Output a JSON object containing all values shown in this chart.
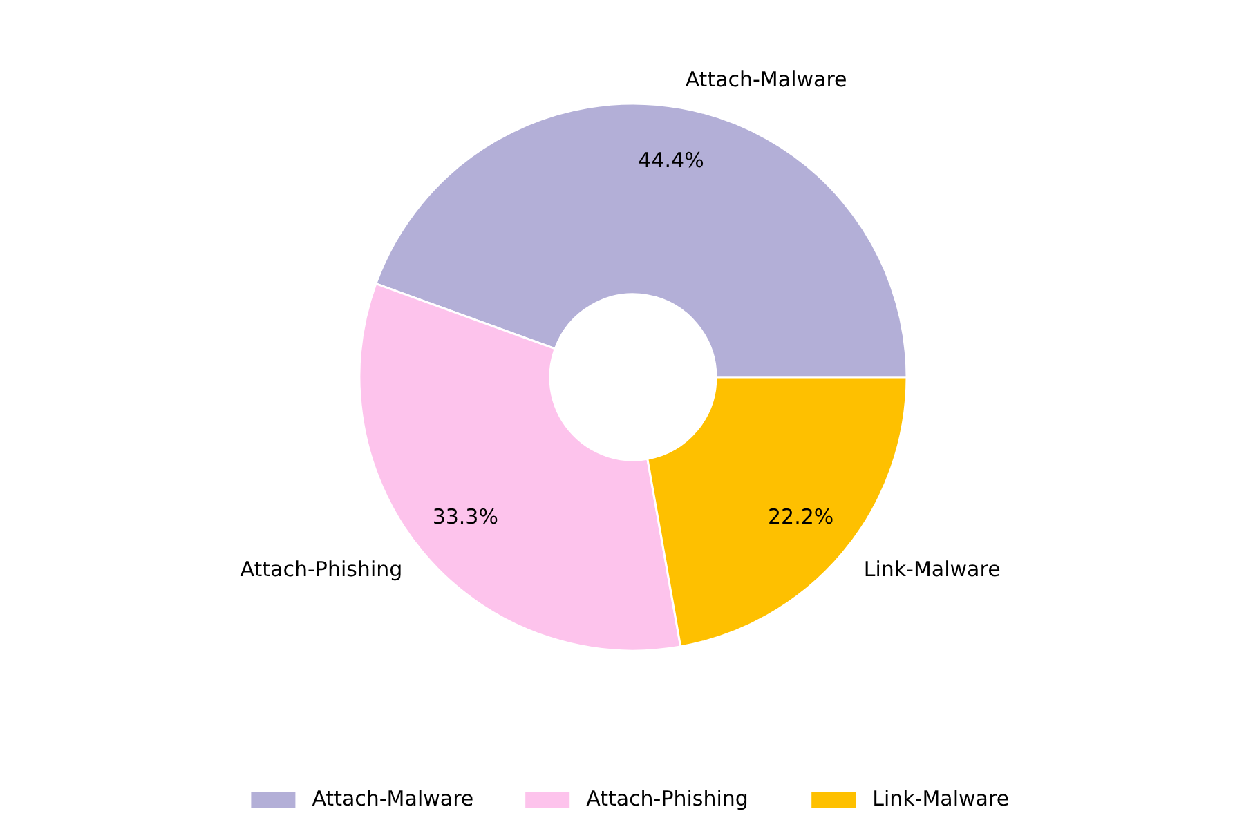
{
  "chart_data": {
    "type": "donut",
    "categories": [
      "Attach-Malware",
      "Attach-Phishing",
      "Link-Malware"
    ],
    "values": [
      44.4,
      33.3,
      22.2
    ],
    "colors": [
      "#b3afd7",
      "#fdc3ec",
      "#fec000"
    ],
    "value_labels": [
      "44.4%",
      "33.3%",
      "22.2%"
    ],
    "legend": "bottom"
  }
}
